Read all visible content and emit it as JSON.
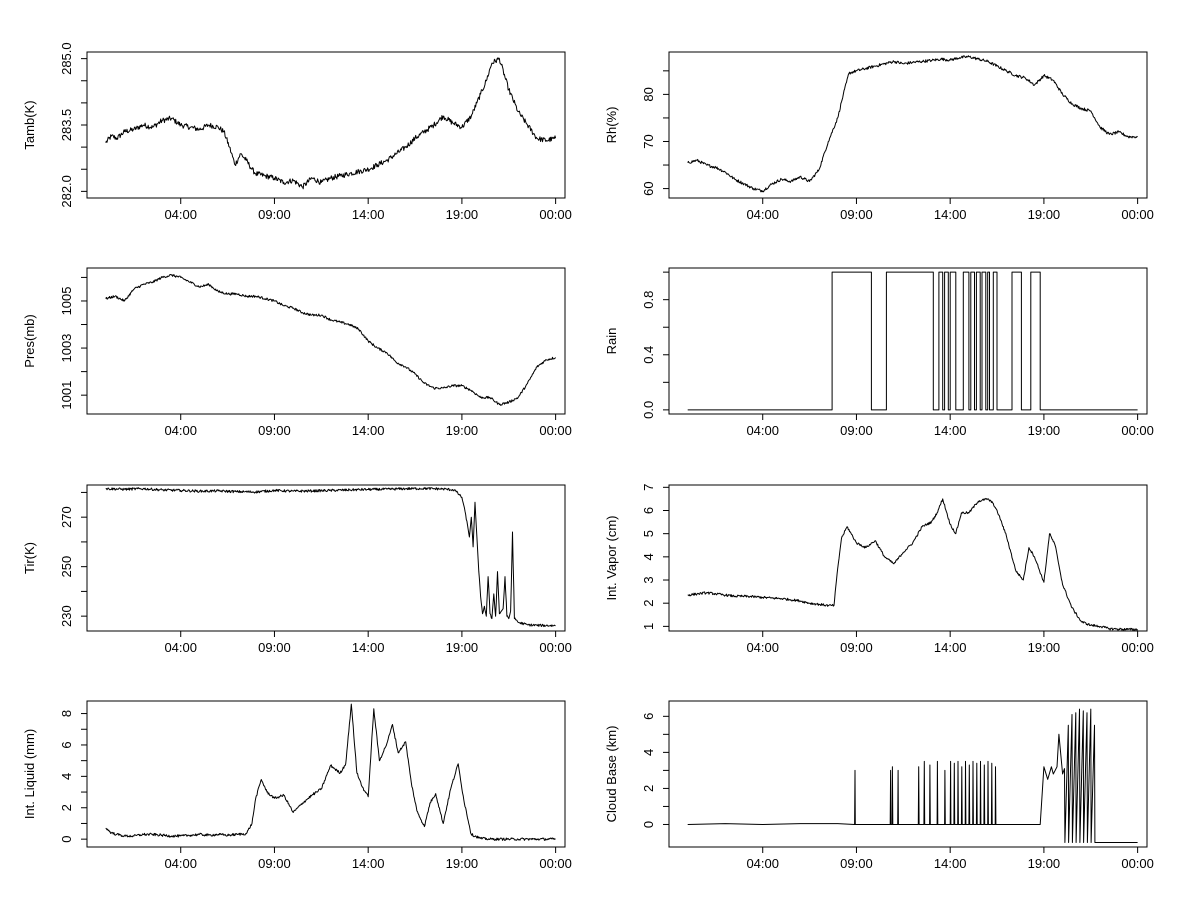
{
  "chart_data": [
    {
      "type": "line",
      "ylabel": "Tamb(K)",
      "ylim": [
        281.85,
        285.15
      ],
      "yticks": [
        282.0,
        282.5,
        283.0,
        283.5,
        284.0,
        284.5,
        285.0
      ],
      "yticklabels": [
        "282.0",
        "",
        "",
        "283.5",
        "",
        "",
        "285.0"
      ],
      "xlim": [
        -1.0,
        24.5
      ],
      "xticks": [
        4,
        9,
        14,
        19,
        24
      ],
      "xticklabels": [
        "04:00",
        "09:00",
        "14:00",
        "19:00",
        "00:00"
      ],
      "noise": 0.06,
      "x": [
        0,
        0.3,
        0.6,
        1.0,
        1.5,
        2.0,
        2.5,
        3.0,
        3.5,
        4.0,
        4.5,
        5.0,
        5.5,
        6.0,
        6.3,
        6.6,
        6.9,
        7.2,
        7.5,
        7.8,
        8.0,
        8.5,
        9.0,
        9.5,
        10.0,
        10.5,
        11.0,
        11.5,
        12.0,
        12.5,
        13.0,
        13.5,
        14.0,
        14.5,
        15.0,
        15.5,
        16.0,
        16.5,
        17.0,
        17.5,
        18.0,
        18.5,
        19.0,
        19.5,
        19.8,
        20.0,
        20.3,
        20.6,
        21.0,
        21.5,
        22.0,
        22.5,
        23.0,
        23.5,
        24.0
      ],
      "y": [
        283.1,
        283.25,
        283.2,
        283.35,
        283.4,
        283.5,
        283.45,
        283.6,
        283.65,
        283.5,
        283.45,
        283.4,
        283.5,
        283.45,
        283.35,
        283.0,
        282.6,
        282.85,
        282.7,
        282.5,
        282.4,
        282.35,
        282.3,
        282.2,
        282.25,
        282.1,
        282.3,
        282.2,
        282.3,
        282.35,
        282.4,
        282.45,
        282.5,
        282.6,
        282.7,
        282.85,
        283.0,
        283.2,
        283.35,
        283.5,
        283.7,
        283.55,
        283.45,
        283.7,
        284.0,
        284.2,
        284.5,
        284.9,
        285.0,
        284.3,
        283.8,
        283.5,
        283.2,
        283.15,
        283.2
      ]
    },
    {
      "type": "line",
      "ylabel": "Rh(%)",
      "ylim": [
        58,
        89
      ],
      "yticks": [
        60,
        65,
        70,
        75,
        80,
        85
      ],
      "yticklabels": [
        "60",
        "",
        "70",
        "",
        "80",
        ""
      ],
      "xlim": [
        -1.0,
        24.5
      ],
      "xticks": [
        4,
        9,
        14,
        19,
        24
      ],
      "xticklabels": [
        "04:00",
        "09:00",
        "14:00",
        "19:00",
        "00:00"
      ],
      "noise": 0.3,
      "x": [
        0,
        0.5,
        1.0,
        1.5,
        2.0,
        2.5,
        3.0,
        3.5,
        4.0,
        4.5,
        5.0,
        5.5,
        6.0,
        6.5,
        7.0,
        7.5,
        8.0,
        8.3,
        8.6,
        9.0,
        9.5,
        10.0,
        10.5,
        11.0,
        11.5,
        12.0,
        12.5,
        13.0,
        13.5,
        14.0,
        14.5,
        15.0,
        15.5,
        16.0,
        16.5,
        17.0,
        17.5,
        18.0,
        18.5,
        19.0,
        19.5,
        20.0,
        20.5,
        21.0,
        21.5,
        22.0,
        22.5,
        23.0,
        23.5,
        24.0
      ],
      "y": [
        65.5,
        66.0,
        65.0,
        64.5,
        63.5,
        62.0,
        61.0,
        60.0,
        59.5,
        61.0,
        62.0,
        61.5,
        62.5,
        61.5,
        64.0,
        70.0,
        75.0,
        80.0,
        84.5,
        85.0,
        85.5,
        86.0,
        86.5,
        87.0,
        86.5,
        86.8,
        87.0,
        87.2,
        87.5,
        87.3,
        87.8,
        88.0,
        87.5,
        87.0,
        86.0,
        85.0,
        84.0,
        83.5,
        82.0,
        84.0,
        83.0,
        80.0,
        78.0,
        77.0,
        76.5,
        73.0,
        71.5,
        72.0,
        71.0,
        71.0
      ]
    },
    {
      "type": "line",
      "ylabel": "Pres(mb)",
      "ylim": [
        1000.2,
        1006.4
      ],
      "yticks": [
        1001,
        1002,
        1003,
        1004,
        1005,
        1006
      ],
      "yticklabels": [
        "1001",
        "",
        "1003",
        "",
        "1005",
        ""
      ],
      "xlim": [
        -1.0,
        24.5
      ],
      "xticks": [
        4,
        9,
        14,
        19,
        24
      ],
      "xticklabels": [
        "04:00",
        "09:00",
        "14:00",
        "19:00",
        "00:00"
      ],
      "noise": 0.05,
      "x": [
        0,
        0.5,
        1.0,
        1.5,
        2.0,
        2.5,
        3.0,
        3.5,
        4.0,
        4.5,
        5.0,
        5.5,
        6.0,
        6.5,
        7.0,
        7.5,
        8.0,
        8.5,
        9.0,
        9.5,
        10.0,
        10.5,
        11.0,
        11.5,
        12.0,
        12.5,
        13.0,
        13.5,
        14.0,
        14.5,
        15.0,
        15.5,
        16.0,
        16.5,
        17.0,
        17.5,
        18.0,
        18.5,
        19.0,
        19.5,
        20.0,
        20.5,
        21.0,
        21.5,
        22.0,
        22.5,
        23.0,
        23.5,
        24.0
      ],
      "y": [
        1005.1,
        1005.2,
        1005.0,
        1005.5,
        1005.7,
        1005.8,
        1006.0,
        1006.1,
        1006.0,
        1005.8,
        1005.6,
        1005.7,
        1005.4,
        1005.3,
        1005.3,
        1005.2,
        1005.2,
        1005.1,
        1005.0,
        1004.8,
        1004.7,
        1004.5,
        1004.4,
        1004.4,
        1004.2,
        1004.1,
        1004.0,
        1003.8,
        1003.3,
        1003.0,
        1002.8,
        1002.4,
        1002.2,
        1001.9,
        1001.5,
        1001.3,
        1001.3,
        1001.4,
        1001.4,
        1001.2,
        1000.9,
        1000.9,
        1000.6,
        1000.7,
        1000.9,
        1001.5,
        1002.2,
        1002.5,
        1002.6
      ]
    },
    {
      "type": "line",
      "ylabel": "Rain",
      "ylim": [
        -0.03,
        1.03
      ],
      "yticks": [
        0.0,
        0.2,
        0.4,
        0.6,
        0.8,
        1.0
      ],
      "yticklabels": [
        "0.0",
        "",
        "0.4",
        "",
        "0.8",
        ""
      ],
      "xlim": [
        -1.0,
        24.5
      ],
      "xticks": [
        4,
        9,
        14,
        19,
        24
      ],
      "xticklabels": [
        "04:00",
        "09:00",
        "14:00",
        "19:00",
        "00:00"
      ],
      "step": true,
      "x": [
        0,
        7.7,
        7.7,
        9.8,
        9.8,
        10.6,
        10.6,
        13.1,
        13.1,
        13.4,
        13.4,
        13.6,
        13.6,
        13.7,
        13.7,
        13.9,
        13.9,
        14.0,
        14.0,
        14.3,
        14.3,
        14.7,
        14.7,
        15.0,
        15.0,
        15.1,
        15.1,
        15.3,
        15.3,
        15.4,
        15.4,
        15.6,
        15.6,
        15.7,
        15.7,
        15.9,
        15.9,
        16.0,
        16.0,
        16.1,
        16.1,
        16.3,
        16.3,
        16.5,
        16.5,
        17.3,
        17.3,
        17.8,
        17.8,
        18.3,
        18.3,
        18.8,
        18.8,
        24.0
      ],
      "y": [
        0,
        0,
        1,
        1,
        0,
        0,
        1,
        1,
        0,
        0,
        1,
        1,
        0,
        0,
        1,
        1,
        0,
        0,
        1,
        1,
        0,
        0,
        1,
        1,
        0,
        0,
        1,
        1,
        0,
        0,
        1,
        1,
        0,
        0,
        1,
        1,
        0,
        0,
        1,
        1,
        0,
        0,
        1,
        1,
        0,
        0,
        1,
        1,
        0,
        0,
        1,
        1,
        0,
        0
      ]
    },
    {
      "type": "line",
      "ylabel": "Tir(K)",
      "ylim": [
        224,
        283
      ],
      "yticks": [
        230,
        240,
        250,
        260,
        270,
        280
      ],
      "yticklabels": [
        "230",
        "",
        "250",
        "",
        "270",
        ""
      ],
      "xlim": [
        -1.0,
        24.5
      ],
      "xticks": [
        4,
        9,
        14,
        19,
        24
      ],
      "xticklabels": [
        "04:00",
        "09:00",
        "14:00",
        "19:00",
        "00:00"
      ],
      "noise": 0.5,
      "x": [
        0,
        1.0,
        2.0,
        3.0,
        4.0,
        5.0,
        6.0,
        7.0,
        8.0,
        9.0,
        10.0,
        11.0,
        12.0,
        13.0,
        14.0,
        15.0,
        16.0,
        17.0,
        18.0,
        18.6,
        19.0,
        19.2,
        19.4,
        19.5,
        19.6,
        19.7,
        19.8,
        19.9,
        20.0,
        20.1,
        20.2,
        20.3,
        20.4,
        20.5,
        20.6,
        20.7,
        20.8,
        20.9,
        21.0,
        21.1,
        21.2,
        21.3,
        21.4,
        21.5,
        21.6,
        21.7,
        21.8,
        21.9,
        22.0,
        22.5,
        23.0,
        23.5,
        24.0
      ],
      "y": [
        281.5,
        281.3,
        281.5,
        281.0,
        280.8,
        280.5,
        280.6,
        280.3,
        280.2,
        280.8,
        280.5,
        280.6,
        280.8,
        281.0,
        281.2,
        281.3,
        281.5,
        281.6,
        281.4,
        281.0,
        278.0,
        271.0,
        262.0,
        270.0,
        258.0,
        276.0,
        262.0,
        248.0,
        238.0,
        231.0,
        234.0,
        230.0,
        246.0,
        231.0,
        229.0,
        239.0,
        230.0,
        248.0,
        231.0,
        232.0,
        233.0,
        246.0,
        230.0,
        229.0,
        232.0,
        264.0,
        229.0,
        228.5,
        227.5,
        226.5,
        226.3,
        226.2,
        226.2
      ]
    },
    {
      "type": "line",
      "ylabel": "Int. Vapor (cm)",
      "ylim": [
        0.8,
        7.1
      ],
      "yticks": [
        1,
        2,
        3,
        4,
        5,
        6,
        7
      ],
      "yticklabels": [
        "1",
        "2",
        "3",
        "4",
        "5",
        "6",
        "7"
      ],
      "xlim": [
        -1.0,
        24.5
      ],
      "xticks": [
        4,
        9,
        14,
        19,
        24
      ],
      "xticklabels": [
        "04:00",
        "09:00",
        "14:00",
        "19:00",
        "00:00"
      ],
      "noise": 0.05,
      "x": [
        0,
        0.5,
        1.0,
        1.5,
        2.0,
        2.5,
        3.0,
        3.5,
        4.0,
        4.5,
        5.0,
        5.5,
        6.0,
        6.5,
        7.0,
        7.5,
        7.8,
        8.0,
        8.2,
        8.5,
        9.0,
        9.5,
        10.0,
        10.5,
        11.0,
        11.5,
        12.0,
        12.5,
        13.0,
        13.3,
        13.6,
        14.0,
        14.3,
        14.6,
        15.0,
        15.5,
        16.0,
        16.3,
        16.6,
        17.0,
        17.5,
        17.9,
        18.2,
        18.5,
        19.0,
        19.3,
        19.6,
        20.0,
        20.5,
        21.0,
        21.5,
        22.0,
        22.5,
        23.0,
        23.5,
        24.0
      ],
      "y": [
        2.35,
        2.4,
        2.45,
        2.4,
        2.35,
        2.3,
        2.3,
        2.28,
        2.25,
        2.22,
        2.2,
        2.15,
        2.1,
        2.0,
        1.95,
        1.9,
        1.9,
        3.5,
        4.8,
        5.3,
        4.6,
        4.4,
        4.7,
        4.0,
        3.7,
        4.2,
        4.6,
        5.3,
        5.5,
        5.9,
        6.5,
        5.4,
        5.0,
        5.9,
        5.9,
        6.4,
        6.5,
        6.3,
        5.8,
        4.9,
        3.4,
        3.0,
        4.4,
        4.0,
        2.9,
        5.0,
        4.5,
        2.8,
        1.8,
        1.2,
        1.05,
        1.0,
        0.9,
        0.88,
        0.87,
        0.87
      ]
    },
    {
      "type": "line",
      "ylabel": "Int. Liquid (mm)",
      "ylim": [
        -0.5,
        8.8
      ],
      "yticks": [
        0,
        1,
        2,
        3,
        4,
        5,
        6,
        7,
        8
      ],
      "yticklabels": [
        "0",
        "",
        "2",
        "",
        "4",
        "",
        "6",
        "",
        "8"
      ],
      "xlim": [
        -1.0,
        24.5
      ],
      "xticks": [
        4,
        9,
        14,
        19,
        24
      ],
      "xticklabels": [
        "04:00",
        "09:00",
        "14:00",
        "19:00",
        "00:00"
      ],
      "noise": 0.08,
      "x": [
        0,
        0.3,
        0.6,
        1.0,
        1.5,
        2.0,
        2.5,
        3.0,
        3.5,
        4.0,
        4.5,
        5.0,
        5.5,
        6.0,
        6.5,
        7.0,
        7.5,
        7.8,
        8.0,
        8.3,
        8.6,
        9.0,
        9.5,
        10.0,
        10.5,
        11.0,
        11.5,
        12.0,
        12.5,
        12.8,
        13.1,
        13.4,
        13.7,
        14.0,
        14.3,
        14.6,
        15.0,
        15.3,
        15.6,
        16.0,
        16.3,
        16.6,
        17.0,
        17.3,
        17.6,
        18.0,
        18.4,
        18.8,
        19.1,
        19.5,
        20.0,
        20.5,
        21.0,
        22.0,
        23.0,
        24.0
      ],
      "y": [
        0.7,
        0.4,
        0.3,
        0.2,
        0.2,
        0.3,
        0.3,
        0.25,
        0.2,
        0.2,
        0.25,
        0.3,
        0.25,
        0.3,
        0.25,
        0.3,
        0.35,
        1.0,
        2.6,
        3.8,
        3.0,
        2.6,
        2.8,
        1.7,
        2.3,
        2.8,
        3.2,
        4.7,
        4.2,
        4.8,
        8.6,
        4.2,
        3.3,
        2.7,
        8.3,
        5.0,
        6.1,
        7.3,
        5.5,
        6.2,
        3.6,
        1.8,
        0.8,
        2.3,
        2.9,
        1.0,
        3.2,
        4.8,
        2.5,
        0.3,
        0.05,
        0.0,
        0.0,
        0.0,
        0.0,
        0.0
      ]
    },
    {
      "type": "line",
      "ylabel": "Cloud Base (km)",
      "ylim": [
        -1.25,
        6.85
      ],
      "yticks": [
        0,
        1,
        2,
        3,
        4,
        5,
        6
      ],
      "yticklabels": [
        "0",
        "",
        "2",
        "",
        "4",
        "",
        "6"
      ],
      "xlim": [
        -1.0,
        24.5
      ],
      "xticks": [
        4,
        9,
        14,
        19,
        24
      ],
      "xticklabels": [
        "04:00",
        "09:00",
        "14:00",
        "19:00",
        "00:00"
      ],
      "noise": 0.0,
      "x": [
        0,
        2.0,
        4.0,
        6.0,
        8.0,
        8.9,
        8.92,
        8.94,
        9.0,
        10.8,
        10.82,
        10.84,
        10.9,
        10.92,
        10.94,
        11.2,
        11.22,
        11.24,
        12.3,
        12.32,
        12.34,
        12.6,
        12.62,
        12.64,
        12.9,
        12.92,
        12.94,
        13.3,
        13.32,
        13.34,
        13.7,
        13.72,
        13.74,
        14.0,
        14.02,
        14.04,
        14.2,
        14.22,
        14.24,
        14.4,
        14.42,
        14.44,
        14.6,
        14.62,
        14.64,
        14.8,
        14.82,
        14.84,
        15.0,
        15.02,
        15.04,
        15.2,
        15.22,
        15.24,
        15.4,
        15.42,
        15.44,
        15.6,
        15.62,
        15.64,
        15.8,
        15.82,
        15.84,
        16.0,
        16.02,
        16.04,
        16.2,
        16.22,
        16.24,
        16.4,
        16.42,
        16.44,
        17.0,
        18.8,
        19.0,
        19.2,
        19.4,
        19.5,
        19.7,
        19.8,
        20.0,
        20.1,
        20.12,
        20.3,
        20.32,
        20.5,
        20.52,
        20.7,
        20.72,
        20.9,
        20.92,
        21.1,
        21.12,
        21.3,
        21.32,
        21.5,
        21.52,
        21.7,
        21.72,
        22.0,
        23.0,
        24.0
      ],
      "y": [
        0.0,
        0.05,
        0.0,
        0.05,
        0.05,
        0.0,
        3.0,
        0.0,
        0.0,
        0.0,
        3.0,
        0.0,
        0.0,
        3.2,
        0.0,
        0.0,
        3.0,
        0.0,
        0.0,
        3.2,
        0.0,
        0.0,
        3.5,
        0.0,
        0.0,
        3.3,
        0.0,
        0.0,
        3.5,
        0.0,
        0.0,
        3.0,
        0.0,
        0.0,
        3.5,
        0.0,
        0.0,
        3.4,
        0.0,
        0.0,
        3.5,
        0.0,
        0.0,
        3.2,
        0.0,
        0.0,
        3.5,
        0.0,
        0.0,
        3.3,
        0.0,
        0.0,
        3.5,
        0.0,
        0.0,
        3.4,
        0.0,
        0.0,
        3.5,
        0.0,
        0.0,
        3.3,
        0.0,
        0.0,
        3.5,
        0.0,
        0.0,
        3.4,
        0.0,
        0.0,
        3.2,
        0.0,
        0.0,
        0.0,
        3.2,
        2.5,
        3.2,
        2.8,
        3.2,
        5.0,
        2.8,
        3.1,
        -1.0,
        5.5,
        -1.0,
        6.1,
        -1.0,
        6.2,
        -1.0,
        6.4,
        -1.0,
        6.3,
        -1.0,
        6.2,
        -1.0,
        6.4,
        -1.0,
        5.5,
        -1.0,
        -1.0,
        -1.0,
        -1.0
      ]
    }
  ]
}
